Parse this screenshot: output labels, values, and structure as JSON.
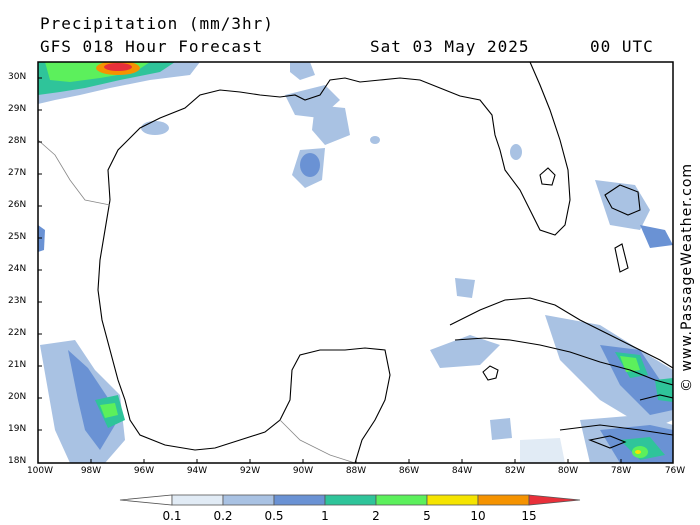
{
  "header": {
    "product": "Precipitation (mm/3hr)",
    "model": "GFS 018 Hour Forecast",
    "date": "Sat 03 May 2025",
    "time": "00 UTC"
  },
  "credit": "© www.PassageWeather.com",
  "map": {
    "lon_range": [
      -100,
      -76
    ],
    "lat_range": [
      18,
      30.5
    ],
    "lat_ticks": [
      "30N",
      "29N",
      "28N",
      "27N",
      "26N",
      "25N",
      "24N",
      "23N",
      "22N",
      "21N",
      "20N",
      "19N",
      "18N"
    ],
    "lon_ticks": [
      "100W",
      "98W",
      "96W",
      "94W",
      "92W",
      "90W",
      "88W",
      "86W",
      "84W",
      "82W",
      "80W",
      "78W",
      "76W"
    ]
  },
  "legend": {
    "labels": [
      "0.1",
      "0.2",
      "0.5",
      "1",
      "2",
      "5",
      "10",
      "15"
    ],
    "colors": [
      "#ffffff",
      "#e1ebf5",
      "#a9c2e3",
      "#6a92d4",
      "#2fc49a",
      "#5cf05c",
      "#f5e400",
      "#f59300",
      "#e8303a"
    ]
  }
}
